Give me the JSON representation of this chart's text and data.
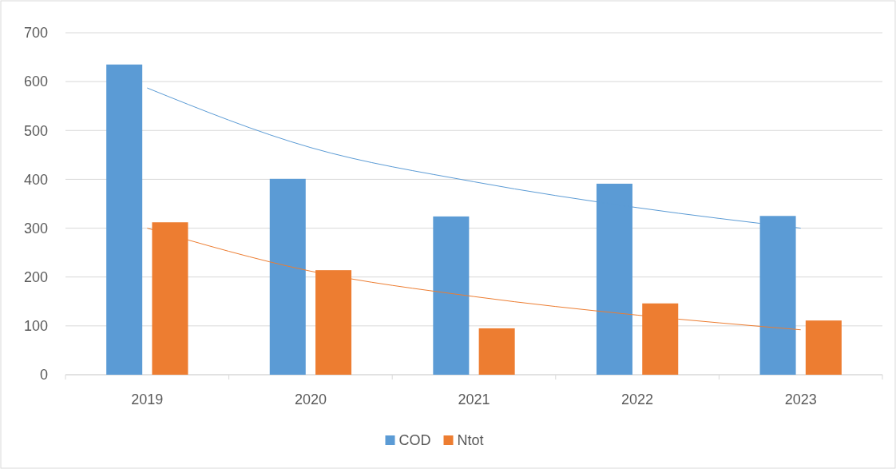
{
  "chart_data": {
    "type": "bar",
    "categories": [
      "2019",
      "2020",
      "2021",
      "2022",
      "2023"
    ],
    "series": [
      {
        "name": "COD",
        "color": "#5b9bd5",
        "values": [
          635,
          401,
          324,
          391,
          325
        ]
      },
      {
        "name": "Ntot",
        "color": "#ed7d31",
        "values": [
          312,
          214,
          95,
          146,
          111
        ]
      },
      {
        "type": "line",
        "color": "#5b9bd5",
        "values": [
          587,
          465,
          395,
          342,
          300
        ]
      },
      {
        "type": "line",
        "color": "#ed7d31",
        "values": [
          300,
          212,
          160,
          122,
          92
        ]
      }
    ],
    "ylim": [
      0,
      700
    ],
    "yticks": [
      0,
      100,
      200,
      300,
      400,
      500,
      600,
      700
    ],
    "grid": "y",
    "legend": "bottom",
    "marker": "none",
    "line_style": "solid"
  }
}
